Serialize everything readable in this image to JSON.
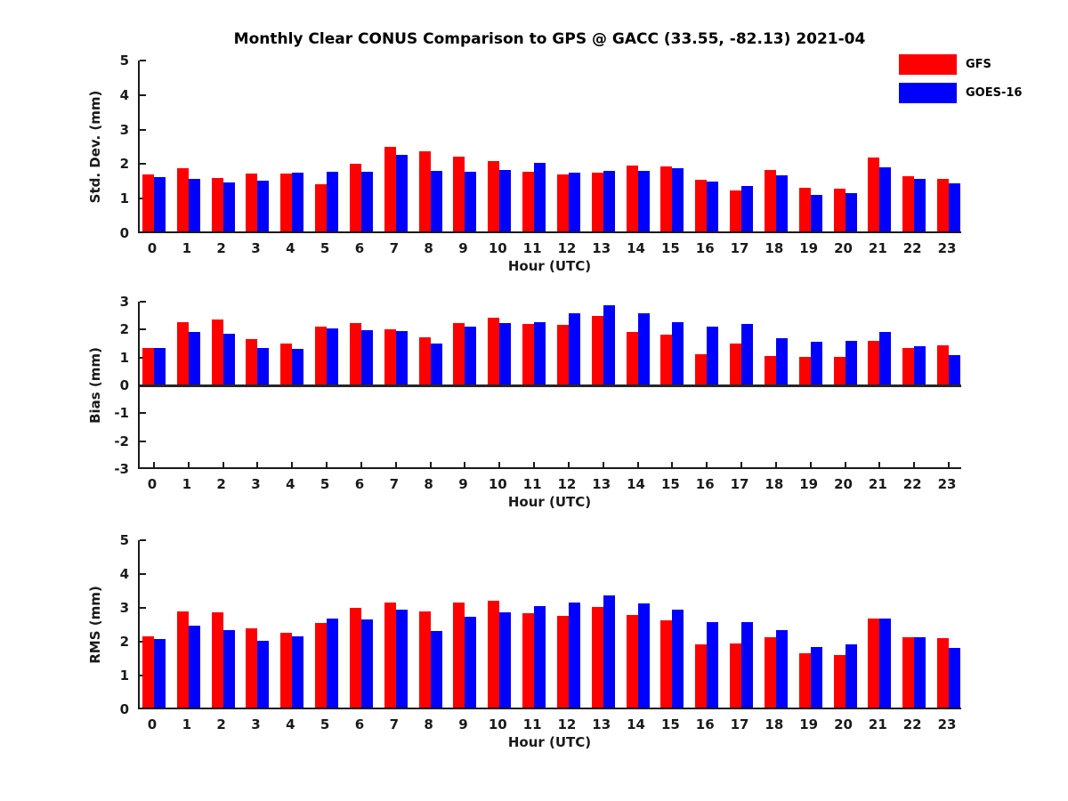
{
  "title": "Monthly Clear CONUS Comparison to GPS @ GACC (33.55, -82.13) 2021-04",
  "colors": {
    "gfs": "#ff0000",
    "goes16": "#0000ff",
    "axis": "#1a1a1a"
  },
  "legend": {
    "position": "top-right",
    "items": [
      {
        "label": "GFS",
        "color": "#ff0000"
      },
      {
        "label": "GOES-16",
        "color": "#0000ff"
      }
    ]
  },
  "chart_data": [
    {
      "type": "bar",
      "ylabel": "Std. Dev. (mm)",
      "xlabel": "Hour (UTC)",
      "ylim": [
        0,
        5
      ],
      "yticks": [
        0,
        1,
        2,
        3,
        4,
        5
      ],
      "grid": false,
      "categories": [
        "0",
        "1",
        "2",
        "3",
        "4",
        "5",
        "6",
        "7",
        "8",
        "9",
        "10",
        "11",
        "12",
        "13",
        "14",
        "15",
        "16",
        "17",
        "18",
        "19",
        "20",
        "21",
        "22",
        "23"
      ],
      "series": [
        {
          "name": "GFS",
          "values": [
            1.7,
            1.87,
            1.61,
            1.73,
            1.73,
            1.43,
            2.01,
            2.5,
            2.38,
            2.21,
            2.09,
            1.79,
            1.7,
            1.74,
            1.97,
            1.93,
            1.54,
            1.23,
            1.84,
            1.31,
            1.29,
            2.18,
            1.65,
            1.57
          ]
        },
        {
          "name": "GOES-16",
          "values": [
            1.63,
            1.58,
            1.46,
            1.53,
            1.74,
            1.77,
            1.79,
            2.28,
            1.81,
            1.79,
            1.84,
            2.03,
            1.75,
            1.8,
            1.81,
            1.87,
            1.5,
            1.36,
            1.68,
            1.11,
            1.16,
            1.9,
            1.58,
            1.45
          ]
        }
      ]
    },
    {
      "type": "bar",
      "ylabel": "Bias (mm)",
      "xlabel": "Hour (UTC)",
      "ylim": [
        -3,
        3
      ],
      "yticks": [
        -3,
        -2,
        -1,
        0,
        1,
        2,
        3
      ],
      "grid": false,
      "categories": [
        "0",
        "1",
        "2",
        "3",
        "4",
        "5",
        "6",
        "7",
        "8",
        "9",
        "10",
        "11",
        "12",
        "13",
        "14",
        "15",
        "16",
        "17",
        "18",
        "19",
        "20",
        "21",
        "22",
        "23"
      ],
      "series": [
        {
          "name": "GFS",
          "values": [
            1.33,
            2.27,
            2.37,
            1.66,
            1.5,
            2.1,
            2.23,
            2.0,
            1.71,
            2.25,
            2.43,
            2.2,
            2.18,
            2.48,
            1.92,
            1.81,
            1.13,
            1.51,
            1.05,
            1.03,
            1.02,
            1.6,
            1.33,
            1.44
          ]
        },
        {
          "name": "GOES-16",
          "values": [
            1.33,
            1.93,
            1.84,
            1.33,
            1.32,
            2.05,
            1.97,
            1.95,
            1.5,
            2.12,
            2.22,
            2.27,
            2.6,
            2.86,
            2.58,
            2.28,
            2.12,
            2.2,
            1.69,
            1.56,
            1.58,
            1.91,
            1.4,
            1.09
          ]
        }
      ]
    },
    {
      "type": "bar",
      "ylabel": "RMS (mm)",
      "xlabel": "Hour (UTC)",
      "ylim": [
        0,
        5
      ],
      "yticks": [
        0,
        1,
        2,
        3,
        4,
        5
      ],
      "grid": false,
      "categories": [
        "0",
        "1",
        "2",
        "3",
        "4",
        "5",
        "6",
        "7",
        "8",
        "9",
        "10",
        "11",
        "12",
        "13",
        "14",
        "15",
        "16",
        "17",
        "18",
        "19",
        "20",
        "21",
        "22",
        "23"
      ],
      "series": [
        {
          "name": "GFS",
          "values": [
            2.15,
            2.9,
            2.87,
            2.4,
            2.27,
            2.55,
            3.0,
            3.17,
            2.9,
            3.15,
            3.2,
            2.85,
            2.77,
            3.03,
            2.78,
            2.63,
            1.93,
            1.95,
            2.12,
            1.66,
            1.6,
            2.68,
            2.13,
            2.1
          ]
        },
        {
          "name": "GOES-16",
          "values": [
            2.07,
            2.48,
            2.35,
            2.02,
            2.17,
            2.68,
            2.67,
            2.95,
            2.32,
            2.73,
            2.88,
            3.05,
            3.15,
            3.38,
            3.12,
            2.95,
            2.58,
            2.59,
            2.35,
            1.84,
            1.91,
            2.68,
            2.13,
            1.82
          ]
        }
      ]
    }
  ]
}
